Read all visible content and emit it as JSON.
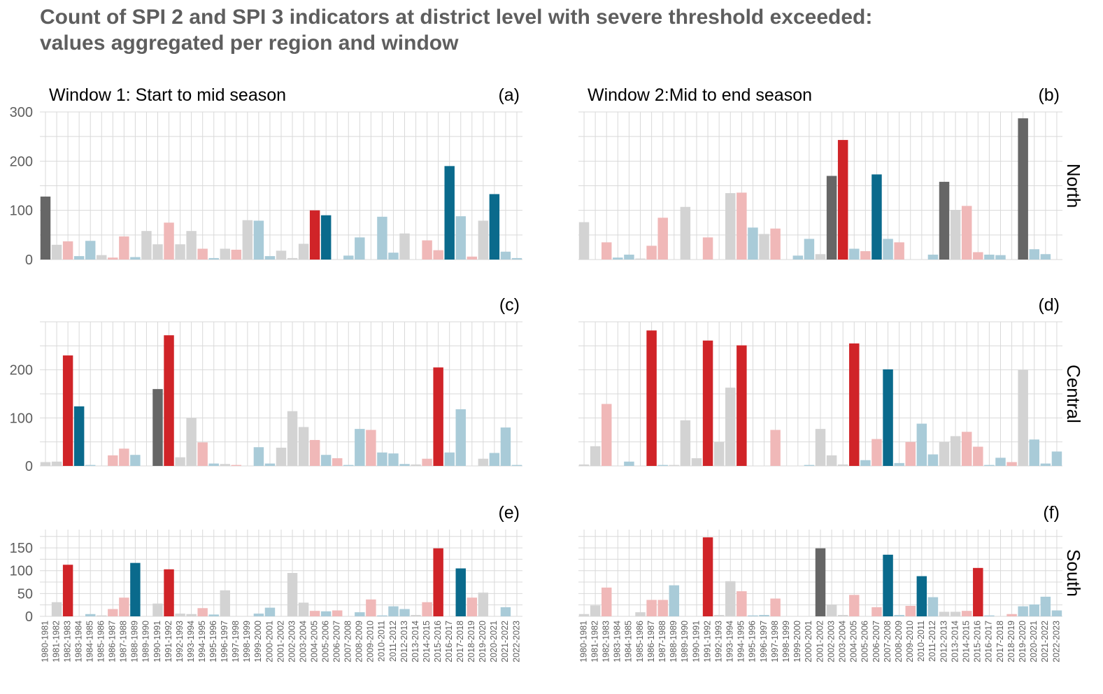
{
  "title": {
    "line1": "Count of SPI 2 and SPI 3 indicators at district level with severe threshold exceeded:",
    "line2": "values aggregated per region and window"
  },
  "colors": {
    "dark_grey": "#666666",
    "light_grey": "#d3d3d3",
    "red": "#d02428",
    "pink": "#f0b8b8",
    "dark_blue": "#0a6a8c",
    "light_blue": "#a9cbd8",
    "grid": "#d9d9d9",
    "text": "#5e5e5e"
  },
  "chart_data": {
    "type": "bar",
    "window_titles": [
      "Window 1: Start to mid season",
      "Window 2:Mid to end season"
    ],
    "regions": [
      "North",
      "Central",
      "South"
    ],
    "categories": [
      "1980-1981",
      "1981-1982",
      "1982-1983",
      "1983-1984",
      "1984-1985",
      "1985-1986",
      "1986-1987",
      "1987-1988",
      "1988-1989",
      "1989-1990",
      "1990-1991",
      "1991-1992",
      "1992-1993",
      "1993-1994",
      "1994-1995",
      "1995-1996",
      "1996-1997",
      "1997-1998",
      "1998-1999",
      "1999-2000",
      "2000-2001",
      "2001-2002",
      "2002-2003",
      "2003-2004",
      "2004-2005",
      "2005-2006",
      "2006-2007",
      "2007-2008",
      "2008-2009",
      "2009-2010",
      "2010-2011",
      "2011-2012",
      "2012-2013",
      "2013-2014",
      "2014-2015",
      "2015-2016",
      "2016-2017",
      "2017-2018",
      "2018-2019",
      "2019-2020",
      "2020-2021",
      "2021-2022",
      "2022-2023"
    ],
    "color_key": {
      "D": "dark_grey",
      "G": "light_grey",
      "R": "red",
      "P": "pink",
      "B": "dark_blue",
      "L": "light_blue"
    },
    "panels": [
      {
        "label": "(a)",
        "region": "North",
        "window": 1,
        "ylim": [
          0,
          300
        ],
        "yticks": [
          0,
          100,
          200,
          300
        ],
        "values": [
          128,
          30,
          37,
          7,
          38,
          9,
          4,
          47,
          5,
          58,
          31,
          75,
          31,
          58,
          22,
          3,
          22,
          20,
          80,
          79,
          7,
          18,
          3,
          32,
          100,
          90,
          0,
          8,
          45,
          0,
          87,
          14,
          53,
          0,
          39,
          19,
          190,
          88,
          6,
          79,
          133,
          16,
          3
        ],
        "colors": [
          "D",
          "G",
          "P",
          "L",
          "L",
          "G",
          "P",
          "P",
          "L",
          "G",
          "G",
          "P",
          "G",
          "G",
          "P",
          "L",
          "G",
          "P",
          "G",
          "L",
          "L",
          "G",
          "G",
          "G",
          "R",
          "B",
          "G",
          "L",
          "L",
          "G",
          "L",
          "L",
          "G",
          "G",
          "P",
          "P",
          "B",
          "L",
          "P",
          "G",
          "B",
          "L",
          "L"
        ]
      },
      {
        "label": "(b)",
        "region": "North",
        "window": 2,
        "ylim": [
          0,
          300
        ],
        "yticks": [
          0,
          100,
          200,
          300
        ],
        "values": [
          76,
          0,
          35,
          4,
          10,
          2,
          28,
          85,
          0,
          107,
          0,
          45,
          0,
          135,
          136,
          65,
          52,
          63,
          0,
          8,
          42,
          11,
          170,
          243,
          22,
          17,
          173,
          42,
          35,
          0,
          0,
          10,
          158,
          101,
          109,
          15,
          10,
          9,
          0,
          287,
          21,
          11,
          0
        ],
        "colors": [
          "G",
          "G",
          "P",
          "L",
          "L",
          "G",
          "P",
          "P",
          "G",
          "G",
          "G",
          "P",
          "G",
          "G",
          "P",
          "L",
          "G",
          "P",
          "G",
          "L",
          "L",
          "G",
          "D",
          "R",
          "L",
          "P",
          "B",
          "L",
          "P",
          "G",
          "G",
          "L",
          "D",
          "G",
          "P",
          "P",
          "L",
          "L",
          "G",
          "D",
          "L",
          "L",
          "G"
        ]
      },
      {
        "label": "(c)",
        "region": "Central",
        "window": 1,
        "ylim": [
          0,
          300
        ],
        "yticks": [
          0,
          100,
          200
        ],
        "values": [
          8,
          9,
          230,
          124,
          2,
          0,
          22,
          36,
          23,
          0,
          160,
          272,
          18,
          100,
          49,
          5,
          4,
          2,
          0,
          39,
          5,
          38,
          114,
          81,
          54,
          23,
          16,
          2,
          77,
          75,
          28,
          26,
          4,
          3,
          15,
          205,
          28,
          118,
          0,
          15,
          27,
          80,
          2
        ],
        "colors": [
          "G",
          "G",
          "R",
          "B",
          "L",
          "G",
          "P",
          "P",
          "L",
          "G",
          "D",
          "R",
          "G",
          "G",
          "P",
          "L",
          "G",
          "P",
          "G",
          "L",
          "L",
          "G",
          "G",
          "G",
          "P",
          "L",
          "P",
          "L",
          "L",
          "P",
          "L",
          "L",
          "L",
          "G",
          "P",
          "R",
          "L",
          "L",
          "G",
          "G",
          "L",
          "L",
          "L"
        ]
      },
      {
        "label": "(d)",
        "region": "Central",
        "window": 2,
        "ylim": [
          0,
          300
        ],
        "yticks": [
          0,
          100,
          200
        ],
        "values": [
          3,
          41,
          129,
          0,
          9,
          0,
          282,
          2,
          2,
          95,
          16,
          261,
          50,
          163,
          251,
          0,
          0,
          75,
          0,
          0,
          2,
          77,
          22,
          3,
          255,
          12,
          56,
          201,
          6,
          50,
          88,
          24,
          50,
          62,
          71,
          40,
          2,
          17,
          8,
          200,
          55,
          5,
          30
        ],
        "colors": [
          "G",
          "G",
          "P",
          "G",
          "L",
          "G",
          "R",
          "L",
          "G",
          "G",
          "G",
          "R",
          "G",
          "G",
          "R",
          "L",
          "G",
          "P",
          "G",
          "G",
          "L",
          "G",
          "G",
          "G",
          "R",
          "L",
          "P",
          "B",
          "L",
          "P",
          "L",
          "L",
          "G",
          "G",
          "P",
          "P",
          "L",
          "L",
          "P",
          "G",
          "L",
          "L",
          "L"
        ]
      },
      {
        "label": "(e)",
        "region": "South",
        "window": 1,
        "ylim": [
          0,
          190
        ],
        "yticks": [
          0,
          50,
          100,
          150
        ],
        "values": [
          0,
          31,
          113,
          0,
          5,
          2,
          16,
          41,
          117,
          0,
          28,
          103,
          6,
          5,
          18,
          4,
          57,
          0,
          0,
          6,
          19,
          0,
          95,
          30,
          12,
          11,
          13,
          0,
          9,
          37,
          2,
          22,
          16,
          3,
          31,
          149,
          0,
          105,
          41,
          52,
          0,
          20,
          0
        ],
        "colors": [
          "G",
          "G",
          "R",
          "G",
          "L",
          "G",
          "P",
          "P",
          "B",
          "G",
          "G",
          "R",
          "G",
          "G",
          "P",
          "L",
          "G",
          "G",
          "G",
          "L",
          "L",
          "G",
          "G",
          "G",
          "P",
          "L",
          "P",
          "L",
          "L",
          "P",
          "L",
          "L",
          "L",
          "G",
          "P",
          "R",
          "L",
          "B",
          "P",
          "G",
          "G",
          "L",
          "L"
        ]
      },
      {
        "label": "(f)",
        "region": "South",
        "window": 2,
        "ylim": [
          0,
          190
        ],
        "yticks": [
          0,
          50,
          100,
          150
        ],
        "values": [
          5,
          24,
          63,
          0,
          0,
          9,
          36,
          36,
          68,
          0,
          0,
          173,
          3,
          77,
          55,
          2,
          3,
          39,
          0,
          0,
          0,
          149,
          26,
          3,
          47,
          0,
          20,
          135,
          3,
          23,
          88,
          42,
          10,
          10,
          12,
          106,
          2,
          0,
          5,
          22,
          26,
          43,
          13
        ],
        "colors": [
          "G",
          "G",
          "P",
          "G",
          "L",
          "G",
          "P",
          "P",
          "L",
          "G",
          "G",
          "R",
          "G",
          "G",
          "P",
          "L",
          "L",
          "P",
          "G",
          "G",
          "G",
          "D",
          "G",
          "G",
          "P",
          "L",
          "P",
          "B",
          "L",
          "P",
          "B",
          "L",
          "G",
          "G",
          "P",
          "R",
          "L",
          "L",
          "P",
          "L",
          "L",
          "L",
          "L"
        ]
      }
    ]
  }
}
